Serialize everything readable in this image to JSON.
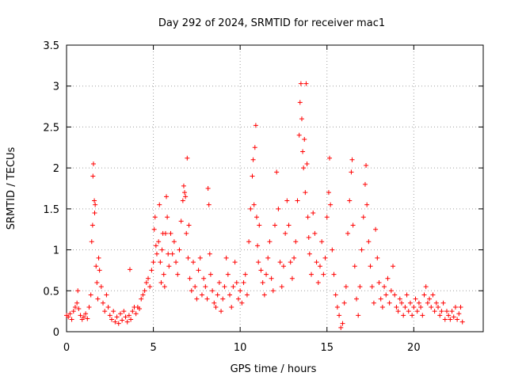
{
  "chart_data": {
    "type": "scatter",
    "title": "Day 292 of 2024, SRMTID for receiver mac1",
    "xlabel": "GPS time / hours",
    "ylabel": "SRMTID / TECUs",
    "xlim": [
      0,
      24
    ],
    "ylim": [
      0,
      3.5
    ],
    "xticks": [
      0,
      5,
      10,
      15,
      20
    ],
    "xtick_labels": [
      "0",
      "5",
      "10",
      "15",
      "20"
    ],
    "yticks": [
      0,
      0.5,
      1,
      1.5,
      2,
      2.5,
      3,
      3.5
    ],
    "ytick_labels": [
      "0",
      "0.5",
      "1",
      "1.5",
      "2",
      "2.5",
      "3",
      "3.5"
    ],
    "grid": true,
    "marker": "+",
    "color": "#ff0000",
    "series": [
      {
        "name": "SRMTID",
        "points": [
          [
            0.0,
            0.2
          ],
          [
            0.1,
            0.18
          ],
          [
            0.2,
            0.22
          ],
          [
            0.3,
            0.15
          ],
          [
            0.4,
            0.25
          ],
          [
            0.5,
            0.3
          ],
          [
            0.6,
            0.35
          ],
          [
            0.65,
            0.5
          ],
          [
            0.7,
            0.28
          ],
          [
            0.8,
            0.2
          ],
          [
            0.9,
            0.15
          ],
          [
            1.0,
            0.18
          ],
          [
            1.1,
            0.22
          ],
          [
            1.2,
            0.16
          ],
          [
            1.3,
            0.3
          ],
          [
            1.4,
            0.45
          ],
          [
            1.45,
            1.1
          ],
          [
            1.5,
            1.3
          ],
          [
            1.52,
            1.9
          ],
          [
            1.55,
            2.05
          ],
          [
            1.6,
            1.6
          ],
          [
            1.62,
            1.45
          ],
          [
            1.65,
            1.55
          ],
          [
            1.7,
            0.8
          ],
          [
            1.75,
            0.6
          ],
          [
            1.8,
            0.4
          ],
          [
            1.85,
            0.9
          ],
          [
            1.9,
            0.75
          ],
          [
            2.0,
            0.55
          ],
          [
            2.1,
            0.35
          ],
          [
            2.2,
            0.25
          ],
          [
            2.3,
            0.45
          ],
          [
            2.4,
            0.3
          ],
          [
            2.5,
            0.2
          ],
          [
            2.6,
            0.15
          ],
          [
            2.7,
            0.25
          ],
          [
            2.8,
            0.12
          ],
          [
            2.9,
            0.18
          ],
          [
            3.0,
            0.1
          ],
          [
            3.1,
            0.22
          ],
          [
            3.2,
            0.14
          ],
          [
            3.3,
            0.25
          ],
          [
            3.4,
            0.18
          ],
          [
            3.5,
            0.12
          ],
          [
            3.6,
            0.2
          ],
          [
            3.65,
            0.76
          ],
          [
            3.7,
            0.15
          ],
          [
            3.8,
            0.25
          ],
          [
            3.9,
            0.3
          ],
          [
            4.0,
            0.22
          ],
          [
            4.1,
            0.3
          ],
          [
            4.2,
            0.28
          ],
          [
            4.3,
            0.4
          ],
          [
            4.4,
            0.45
          ],
          [
            4.5,
            0.5
          ],
          [
            4.6,
            0.6
          ],
          [
            4.7,
            0.65
          ],
          [
            4.8,
            0.55
          ],
          [
            4.9,
            0.75
          ],
          [
            5.0,
            0.85
          ],
          [
            5.05,
            1.25
          ],
          [
            5.1,
            1.4
          ],
          [
            5.15,
            1.05
          ],
          [
            5.2,
            0.95
          ],
          [
            5.3,
            1.1
          ],
          [
            5.35,
            1.55
          ],
          [
            5.4,
            0.85
          ],
          [
            5.45,
            0.6
          ],
          [
            5.5,
            1.0
          ],
          [
            5.55,
            1.2
          ],
          [
            5.6,
            0.7
          ],
          [
            5.65,
            0.55
          ],
          [
            5.7,
            1.2
          ],
          [
            5.75,
            1.65
          ],
          [
            5.8,
            1.4
          ],
          [
            5.85,
            0.95
          ],
          [
            5.9,
            0.8
          ],
          [
            6.0,
            1.2
          ],
          [
            6.1,
            0.95
          ],
          [
            6.2,
            1.1
          ],
          [
            6.3,
            0.85
          ],
          [
            6.4,
            0.7
          ],
          [
            6.5,
            1.0
          ],
          [
            6.6,
            1.35
          ],
          [
            6.7,
            1.6
          ],
          [
            6.75,
            1.78
          ],
          [
            6.8,
            1.7
          ],
          [
            6.85,
            1.65
          ],
          [
            6.9,
            1.2
          ],
          [
            6.95,
            2.12
          ],
          [
            7.0,
            0.9
          ],
          [
            7.05,
            1.3
          ],
          [
            7.1,
            0.65
          ],
          [
            7.2,
            0.5
          ],
          [
            7.3,
            0.85
          ],
          [
            7.4,
            0.55
          ],
          [
            7.5,
            0.4
          ],
          [
            7.6,
            0.75
          ],
          [
            7.7,
            0.9
          ],
          [
            7.8,
            0.45
          ],
          [
            7.9,
            0.65
          ],
          [
            8.0,
            0.55
          ],
          [
            8.1,
            0.4
          ],
          [
            8.15,
            1.75
          ],
          [
            8.2,
            1.55
          ],
          [
            8.25,
            0.95
          ],
          [
            8.3,
            0.7
          ],
          [
            8.4,
            0.5
          ],
          [
            8.5,
            0.35
          ],
          [
            8.6,
            0.3
          ],
          [
            8.7,
            0.45
          ],
          [
            8.8,
            0.6
          ],
          [
            8.9,
            0.25
          ],
          [
            9.0,
            0.4
          ],
          [
            9.1,
            0.55
          ],
          [
            9.2,
            0.9
          ],
          [
            9.3,
            0.7
          ],
          [
            9.4,
            0.45
          ],
          [
            9.5,
            0.3
          ],
          [
            9.6,
            0.55
          ],
          [
            9.7,
            0.85
          ],
          [
            9.8,
            0.6
          ],
          [
            9.9,
            0.4
          ],
          [
            10.0,
            0.5
          ],
          [
            10.1,
            0.35
          ],
          [
            10.2,
            0.6
          ],
          [
            10.3,
            0.7
          ],
          [
            10.4,
            0.45
          ],
          [
            10.5,
            1.1
          ],
          [
            10.6,
            1.5
          ],
          [
            10.7,
            1.9
          ],
          [
            10.75,
            2.1
          ],
          [
            10.8,
            1.55
          ],
          [
            10.85,
            2.25
          ],
          [
            10.9,
            2.52
          ],
          [
            10.95,
            1.4
          ],
          [
            11.0,
            1.05
          ],
          [
            11.05,
            0.85
          ],
          [
            11.1,
            1.3
          ],
          [
            11.2,
            0.75
          ],
          [
            11.3,
            0.6
          ],
          [
            11.4,
            0.45
          ],
          [
            11.5,
            0.7
          ],
          [
            11.6,
            0.9
          ],
          [
            11.7,
            1.1
          ],
          [
            11.8,
            0.65
          ],
          [
            11.9,
            0.5
          ],
          [
            12.0,
            1.3
          ],
          [
            12.1,
            1.95
          ],
          [
            12.2,
            1.5
          ],
          [
            12.3,
            0.85
          ],
          [
            12.4,
            0.55
          ],
          [
            12.5,
            0.8
          ],
          [
            12.6,
            1.2
          ],
          [
            12.7,
            1.6
          ],
          [
            12.8,
            1.3
          ],
          [
            12.9,
            0.85
          ],
          [
            13.0,
            0.65
          ],
          [
            13.1,
            0.9
          ],
          [
            13.2,
            1.1
          ],
          [
            13.3,
            1.6
          ],
          [
            13.4,
            2.4
          ],
          [
            13.45,
            2.8
          ],
          [
            13.5,
            3.03
          ],
          [
            13.55,
            2.6
          ],
          [
            13.6,
            2.2
          ],
          [
            13.65,
            2.0
          ],
          [
            13.7,
            2.35
          ],
          [
            13.75,
            1.7
          ],
          [
            13.8,
            3.03
          ],
          [
            13.85,
            2.05
          ],
          [
            13.9,
            1.4
          ],
          [
            13.95,
            1.15
          ],
          [
            14.0,
            0.95
          ],
          [
            14.1,
            0.7
          ],
          [
            14.2,
            1.45
          ],
          [
            14.3,
            1.2
          ],
          [
            14.4,
            0.85
          ],
          [
            14.5,
            0.6
          ],
          [
            14.6,
            0.8
          ],
          [
            14.7,
            1.1
          ],
          [
            14.8,
            0.7
          ],
          [
            14.9,
            0.9
          ],
          [
            15.0,
            1.4
          ],
          [
            15.1,
            1.7
          ],
          [
            15.15,
            2.12
          ],
          [
            15.2,
            1.55
          ],
          [
            15.3,
            1.0
          ],
          [
            15.4,
            0.7
          ],
          [
            15.5,
            0.45
          ],
          [
            15.6,
            0.3
          ],
          [
            15.7,
            0.2
          ],
          [
            15.8,
            0.05
          ],
          [
            15.9,
            0.1
          ],
          [
            16.0,
            0.35
          ],
          [
            16.1,
            0.55
          ],
          [
            16.2,
            1.2
          ],
          [
            16.3,
            1.6
          ],
          [
            16.4,
            1.95
          ],
          [
            16.45,
            2.1
          ],
          [
            16.5,
            1.3
          ],
          [
            16.6,
            0.8
          ],
          [
            16.7,
            0.4
          ],
          [
            16.8,
            0.2
          ],
          [
            16.9,
            0.55
          ],
          [
            17.0,
            1.0
          ],
          [
            17.1,
            1.4
          ],
          [
            17.2,
            1.8
          ],
          [
            17.25,
            2.03
          ],
          [
            17.3,
            1.55
          ],
          [
            17.4,
            1.1
          ],
          [
            17.5,
            0.8
          ],
          [
            17.6,
            0.55
          ],
          [
            17.7,
            0.35
          ],
          [
            17.8,
            1.25
          ],
          [
            17.9,
            0.9
          ],
          [
            18.0,
            0.6
          ],
          [
            18.1,
            0.4
          ],
          [
            18.2,
            0.3
          ],
          [
            18.3,
            0.55
          ],
          [
            18.4,
            0.45
          ],
          [
            18.5,
            0.65
          ],
          [
            18.6,
            0.35
          ],
          [
            18.7,
            0.5
          ],
          [
            18.8,
            0.8
          ],
          [
            18.9,
            0.45
          ],
          [
            19.0,
            0.3
          ],
          [
            19.1,
            0.25
          ],
          [
            19.2,
            0.4
          ],
          [
            19.3,
            0.35
          ],
          [
            19.4,
            0.2
          ],
          [
            19.5,
            0.3
          ],
          [
            19.6,
            0.45
          ],
          [
            19.7,
            0.25
          ],
          [
            19.8,
            0.35
          ],
          [
            19.9,
            0.2
          ],
          [
            20.0,
            0.3
          ],
          [
            20.1,
            0.4
          ],
          [
            20.2,
            0.25
          ],
          [
            20.3,
            0.35
          ],
          [
            20.4,
            0.3
          ],
          [
            20.5,
            0.2
          ],
          [
            20.6,
            0.45
          ],
          [
            20.7,
            0.55
          ],
          [
            20.8,
            0.35
          ],
          [
            20.9,
            0.4
          ],
          [
            21.0,
            0.3
          ],
          [
            21.1,
            0.45
          ],
          [
            21.2,
            0.25
          ],
          [
            21.3,
            0.35
          ],
          [
            21.4,
            0.3
          ],
          [
            21.5,
            0.2
          ],
          [
            21.6,
            0.25
          ],
          [
            21.7,
            0.35
          ],
          [
            21.8,
            0.15
          ],
          [
            21.9,
            0.25
          ],
          [
            22.0,
            0.2
          ],
          [
            22.1,
            0.15
          ],
          [
            22.2,
            0.25
          ],
          [
            22.3,
            0.18
          ],
          [
            22.4,
            0.3
          ],
          [
            22.5,
            0.15
          ],
          [
            22.6,
            0.22
          ],
          [
            22.7,
            0.3
          ],
          [
            22.8,
            0.12
          ]
        ]
      }
    ]
  }
}
